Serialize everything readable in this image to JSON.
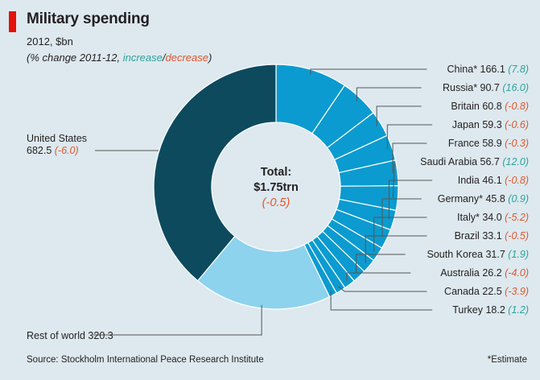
{
  "header": {
    "title": "Military spending",
    "subtitle": "2012, $bn",
    "note_prefix": "(% change 2011-12, ",
    "note_increase": "increase",
    "note_sep": "/",
    "note_decrease": "decrease",
    "note_suffix": ")"
  },
  "center": {
    "label": "Total:",
    "value": "$1.75trn",
    "change": "(-0.5)"
  },
  "footer": {
    "source": "Source: Stockholm International Peace Research Institute",
    "footnote": "*Estimate"
  },
  "colors": {
    "increase": "#2aa39b",
    "decrease": "#e0572d",
    "us": "#0d4a5e",
    "rest": "#8dd3ee",
    "others": "#0b9bd0",
    "background": "#dde9ef",
    "accent": "#e3120b"
  },
  "chart_data": {
    "type": "pie",
    "style": "donut",
    "total": "$1.75trn",
    "total_change": -0.5,
    "slices": [
      {
        "name": "China*",
        "value": 166.1,
        "value_label": "166.1",
        "change": 7.8,
        "change_label": "(7.8)"
      },
      {
        "name": "Russia*",
        "value": 90.7,
        "value_label": "90.7",
        "change": 16.0,
        "change_label": "(16.0)"
      },
      {
        "name": "Britain",
        "value": 60.8,
        "value_label": "60.8",
        "change": -0.8,
        "change_label": "(-0.8)"
      },
      {
        "name": "Japan",
        "value": 59.3,
        "value_label": "59.3",
        "change": -0.6,
        "change_label": "(-0.6)"
      },
      {
        "name": "France",
        "value": 58.9,
        "value_label": "58.9",
        "change": -0.3,
        "change_label": "(-0.3)"
      },
      {
        "name": "Saudi Arabia",
        "value": 56.7,
        "value_label": "56.7",
        "change": 12.0,
        "change_label": "(12.0)"
      },
      {
        "name": "India",
        "value": 46.1,
        "value_label": "46.1",
        "change": -0.8,
        "change_label": "(-0.8)"
      },
      {
        "name": "Germany*",
        "value": 45.8,
        "value_label": "45.8",
        "change": 0.9,
        "change_label": "(0.9)"
      },
      {
        "name": "Italy*",
        "value": 34.0,
        "value_label": "34.0",
        "change": -5.2,
        "change_label": "(-5.2)"
      },
      {
        "name": "Brazil",
        "value": 33.1,
        "value_label": "33.1",
        "change": -0.5,
        "change_label": "(-0.5)"
      },
      {
        "name": "South Korea",
        "value": 31.7,
        "value_label": "31.7",
        "change": 1.9,
        "change_label": "(1.9)"
      },
      {
        "name": "Australia",
        "value": 26.2,
        "value_label": "26.2",
        "change": -4.0,
        "change_label": "(-4.0)"
      },
      {
        "name": "Canada",
        "value": 22.5,
        "value_label": "22.5",
        "change": -3.9,
        "change_label": "(-3.9)"
      },
      {
        "name": "Turkey",
        "value": 18.2,
        "value_label": "18.2",
        "change": 1.2,
        "change_label": "(1.2)"
      },
      {
        "name": "Rest of world",
        "value": 320.3,
        "value_label": "320.3",
        "change": null,
        "change_label": ""
      },
      {
        "name": "United States",
        "value": 682.5,
        "value_label": "682.5",
        "change": -6.0,
        "change_label": "(-6.0)"
      }
    ]
  }
}
